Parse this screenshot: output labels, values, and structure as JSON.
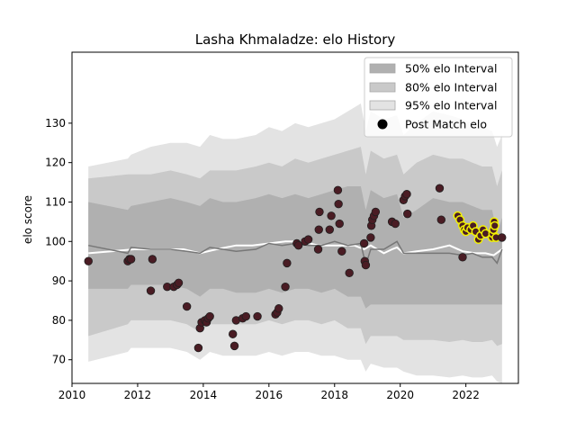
{
  "chart_data": {
    "type": "line",
    "title": "Lasha Khmaladze: elo History",
    "xlabel": "",
    "ylabel": "elo score",
    "xlim": [
      2010.0,
      2023.6
    ],
    "ylim": [
      64,
      148
    ],
    "x_ticks": [
      2010,
      2012,
      2014,
      2016,
      2018,
      2020,
      2022
    ],
    "x_tick_labels": [
      "2010",
      "2012",
      "2014",
      "2016",
      "2018",
      "2020",
      "2022"
    ],
    "y_ticks": [
      70,
      80,
      90,
      100,
      110,
      120,
      130
    ],
    "y_tick_labels": [
      "70",
      "80",
      "90",
      "100",
      "110",
      "120",
      "130"
    ],
    "legend": {
      "position": "top-right",
      "entries": [
        "50% elo Interval",
        "80% elo Interval",
        "95% elo Interval",
        "Post Match elo"
      ]
    },
    "colors": {
      "band95": "#e3e3e3",
      "band80": "#c9c9c9",
      "band50": "#b0b0b0",
      "mean_line": "#ffffff",
      "dark_line": "#777777",
      "point_fill": "#4a1c24",
      "point_edge": "#1f1f1f",
      "recent_edge": "#f2f200"
    },
    "series": [
      {
        "name": "95% elo Interval",
        "x": [
          2010.5,
          2011.7,
          2011.8,
          2012.4,
          2013.0,
          2013.5,
          2013.9,
          2014.2,
          2014.6,
          2015.0,
          2015.6,
          2016.0,
          2016.4,
          2016.8,
          2017.2,
          2017.6,
          2018.0,
          2018.4,
          2018.8,
          2018.95,
          2019.1,
          2019.5,
          2019.9,
          2020.1,
          2020.5,
          2021.0,
          2021.5,
          2021.9,
          2022.2,
          2022.5,
          2022.8,
          2022.95,
          2023.1
        ],
        "upper": [
          119,
          121,
          122,
          124,
          125,
          125,
          124,
          127,
          126,
          126,
          127,
          129,
          128,
          130,
          129,
          130,
          131,
          133,
          135,
          128,
          133,
          131,
          132,
          127,
          130,
          133,
          132,
          131,
          130,
          129,
          128,
          124,
          127
        ],
        "lower": [
          69.5,
          72,
          73,
          73,
          73,
          72,
          70,
          72,
          71,
          71,
          71,
          72,
          71,
          72,
          72,
          71,
          71,
          70,
          70,
          67,
          69,
          68,
          68,
          67,
          66,
          66,
          65.5,
          66,
          65.5,
          65.5,
          66,
          64.5,
          64
        ]
      },
      {
        "name": "80% elo Interval",
        "x": [
          2010.5,
          2011.7,
          2011.8,
          2012.4,
          2013.0,
          2013.5,
          2013.9,
          2014.2,
          2014.6,
          2015.0,
          2015.6,
          2016.0,
          2016.4,
          2016.8,
          2017.2,
          2017.6,
          2018.0,
          2018.4,
          2018.8,
          2018.95,
          2019.1,
          2019.5,
          2019.9,
          2020.1,
          2020.5,
          2021.0,
          2021.5,
          2021.9,
          2022.2,
          2022.5,
          2022.8,
          2022.95,
          2023.1
        ],
        "upper": [
          116,
          117,
          117,
          117,
          118,
          117,
          116,
          118,
          118,
          118,
          119,
          120,
          119,
          121,
          120,
          121,
          122,
          123,
          124,
          117,
          123,
          121,
          122,
          117,
          120,
          122,
          121,
          121,
          120,
          119,
          119,
          114,
          118
        ],
        "lower": [
          76,
          79,
          80,
          80,
          80,
          79,
          77,
          79,
          79,
          79,
          79,
          80,
          79,
          80,
          80,
          79,
          80,
          78,
          78,
          74,
          76,
          76,
          76,
          75,
          75,
          75,
          74.5,
          75,
          74.5,
          74.5,
          75,
          73.5,
          74
        ]
      },
      {
        "name": "50% elo Interval",
        "x": [
          2010.5,
          2011.7,
          2011.8,
          2012.4,
          2013.0,
          2013.5,
          2013.9,
          2014.2,
          2014.6,
          2015.0,
          2015.6,
          2016.0,
          2016.4,
          2016.8,
          2017.2,
          2017.6,
          2018.0,
          2018.4,
          2018.8,
          2018.95,
          2019.1,
          2019.5,
          2019.9,
          2020.1,
          2020.5,
          2021.0,
          2021.5,
          2021.9,
          2022.2,
          2022.5,
          2022.8,
          2022.95,
          2023.1
        ],
        "upper": [
          110,
          108,
          109,
          110,
          111,
          110,
          109,
          111,
          110,
          110,
          111,
          112,
          111,
          112,
          111,
          112,
          113,
          114,
          114,
          108,
          113,
          111,
          112,
          106,
          108,
          111,
          110,
          110,
          109,
          108,
          108,
          102,
          106
        ],
        "lower": [
          88,
          88,
          89,
          89,
          89,
          88,
          86,
          88,
          88,
          87,
          87,
          88,
          87,
          88,
          88,
          87,
          88,
          86,
          86,
          83,
          84,
          84,
          84,
          84,
          84,
          84,
          84,
          84,
          84,
          84,
          84,
          84,
          84
        ]
      },
      {
        "name": "",
        "x": [
          2010.5,
          2011.9,
          2012.4,
          2013.4,
          2013.9,
          2014.4,
          2015.0,
          2015.5,
          2016.0,
          2016.5,
          2017.0,
          2017.5,
          2018.0,
          2018.6,
          2018.9,
          2019.1,
          2019.5,
          2019.75,
          2019.9,
          2020.1,
          2020.5,
          2021.0,
          2021.5,
          2021.9,
          2022.3,
          2022.6,
          2022.85,
          2023.1
        ],
        "values": [
          97,
          98,
          98,
          98,
          97,
          98,
          99,
          99,
          99.5,
          100,
          100,
          99,
          99,
          99,
          98,
          99,
          97,
          98,
          98.5,
          97,
          97.5,
          98,
          99,
          97.5,
          97,
          97,
          96.5,
          98
        ]
      },
      {
        "name": "",
        "x": [
          2010.5,
          2011.7,
          2011.8,
          2012.4,
          2013.0,
          2013.5,
          2013.9,
          2014.2,
          2014.6,
          2015.0,
          2015.6,
          2016.0,
          2016.4,
          2016.8,
          2017.2,
          2017.6,
          2018.0,
          2018.4,
          2018.8,
          2018.95,
          2019.1,
          2019.5,
          2019.9,
          2020.1,
          2020.5,
          2021.0,
          2021.5,
          2021.9,
          2022.2,
          2022.5,
          2022.8,
          2022.95,
          2023.1
        ],
        "values": [
          99,
          97,
          98.5,
          98,
          98,
          97.5,
          97,
          98.5,
          98,
          97.5,
          98,
          99.5,
          99,
          99.5,
          99,
          99,
          100,
          99,
          99.5,
          94,
          98,
          98,
          100,
          97,
          97,
          97,
          97,
          96.5,
          97,
          96,
          96,
          94.5,
          98
        ]
      },
      {
        "name": "Post Match elo",
        "type": "scatter",
        "x": [
          2010.5,
          2011.7,
          2011.75,
          2011.8,
          2012.4,
          2012.45,
          2012.9,
          2013.1,
          2013.2,
          2013.25,
          2013.5,
          2013.85,
          2013.9,
          2013.95,
          2014.05,
          2014.1,
          2014.15,
          2014.2,
          2014.9,
          2014.95,
          2015.0,
          2015.2,
          2015.3,
          2015.65,
          2016.2,
          2016.25,
          2016.3,
          2016.5,
          2016.55,
          2016.85,
          2016.9,
          2017.1,
          2017.2,
          2017.5,
          2017.52,
          2017.54,
          2017.85,
          2017.9,
          2018.1,
          2018.12,
          2018.15,
          2018.22,
          2018.45,
          2018.9,
          2018.92,
          2018.95,
          2019.1,
          2019.12,
          2019.15,
          2019.2,
          2019.25,
          2019.75,
          2019.85,
          2020.1,
          2020.15,
          2020.2,
          2020.22,
          2021.2,
          2021.25,
          2021.9
        ],
        "values": [
          95,
          95,
          95.5,
          95.5,
          87.5,
          95.5,
          88.5,
          88.5,
          89,
          89.5,
          83.5,
          73,
          78,
          79.5,
          80,
          79.5,
          80.5,
          81,
          76.5,
          73.5,
          80,
          80.5,
          81,
          81,
          81.5,
          82,
          83,
          88.5,
          94.5,
          99.5,
          99,
          100,
          100.5,
          98,
          103,
          107.5,
          103,
          106.5,
          113,
          109.5,
          104.5,
          97.5,
          92,
          99.5,
          95,
          94,
          101,
          104,
          105.5,
          106.5,
          107.5,
          105,
          104.5,
          110.5,
          111.5,
          112,
          107,
          113.5,
          105.5,
          96
        ]
      },
      {
        "name": "",
        "type": "scatter",
        "x": [
          2021.75,
          2021.82,
          2021.9,
          2021.95,
          2022.0,
          2022.05,
          2022.15,
          2022.22,
          2022.3,
          2022.38,
          2022.45,
          2022.52,
          2022.6,
          2022.8,
          2022.82,
          2022.84,
          2022.86,
          2022.88,
          2022.92
        ],
        "values": [
          106.5,
          105.5,
          104,
          103,
          102.5,
          103.5,
          103,
          104,
          102.5,
          100.5,
          101.5,
          103,
          102,
          101,
          102,
          103,
          105,
          104,
          101
        ]
      },
      {
        "name": "",
        "type": "scatter",
        "x": [
          2023.1
        ],
        "values": [
          101
        ]
      }
    ]
  }
}
